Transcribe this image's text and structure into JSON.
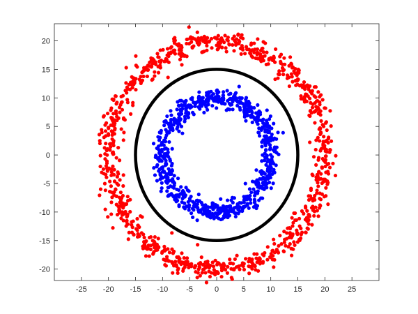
{
  "chart_data": {
    "type": "scatter",
    "title": "",
    "xlabel": "",
    "ylabel": "",
    "xlim": [
      -30,
      30
    ],
    "ylim": [
      -22,
      23
    ],
    "x_ticks": [
      -25,
      -20,
      -15,
      -10,
      -5,
      0,
      5,
      10,
      15,
      20,
      25
    ],
    "y_ticks": [
      -20,
      -15,
      -10,
      -5,
      0,
      5,
      10,
      15,
      20
    ],
    "grid": false,
    "legend": "none",
    "colors": {
      "outer": "#ff0000",
      "inner": "#0000ff",
      "boundary": "#000000"
    },
    "series": [
      {
        "points": "outer ring",
        "center": [
          0,
          0
        ],
        "radius_mean": 20,
        "radius_spread": 1.6,
        "count": 1000,
        "color": "#ff0000"
      },
      {
        "points": "inner ring",
        "center": [
          0,
          0
        ],
        "radius_mean": 10,
        "radius_spread": 1.4,
        "count": 800,
        "color": "#0000ff"
      }
    ],
    "curves": [
      {
        "shape": "circle",
        "center": [
          0,
          0
        ],
        "radius": 15,
        "color": "#000000"
      }
    ]
  }
}
